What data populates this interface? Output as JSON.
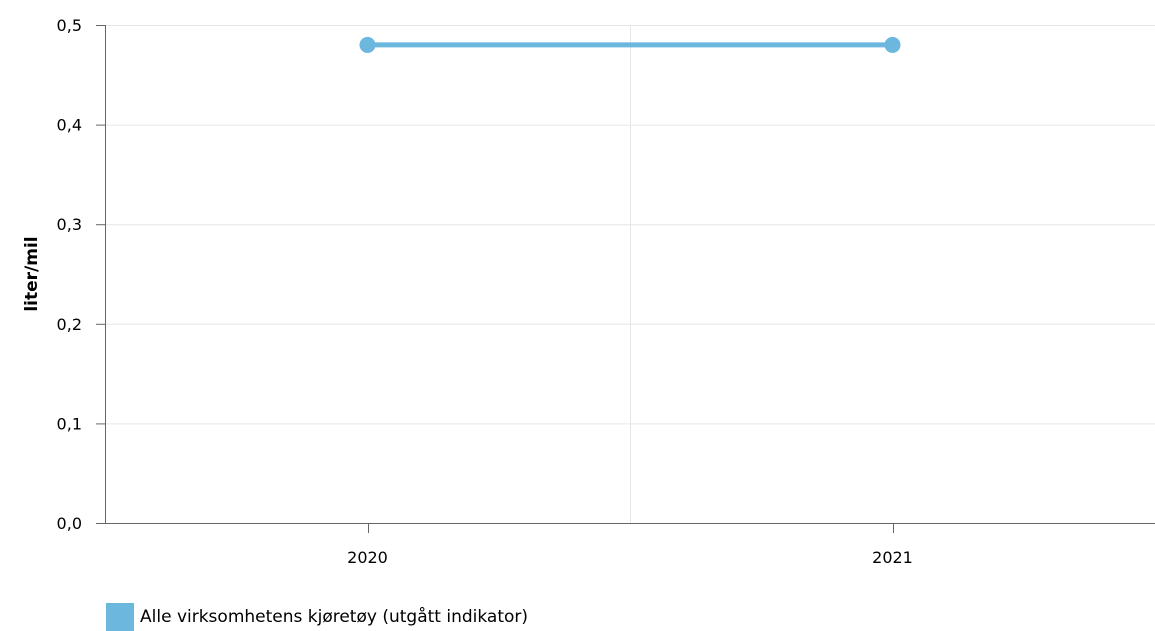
{
  "chart_data": {
    "type": "line",
    "categories": [
      "2020",
      "2021"
    ],
    "series": [
      {
        "name": "Alle virksomhetens kjøretøy (utgått indikator)",
        "values": [
          0.48,
          0.48
        ],
        "color": "#6bb7dd"
      }
    ],
    "title": "",
    "xlabel": "",
    "ylabel": "liter/mil",
    "ylim": [
      0,
      0.5
    ],
    "yticks": [
      {
        "value": 0.0,
        "label": "0,0"
      },
      {
        "value": 0.1,
        "label": "0,1"
      },
      {
        "value": 0.2,
        "label": "0,2"
      },
      {
        "value": 0.3,
        "label": "0,3"
      },
      {
        "value": 0.4,
        "label": "0,4"
      },
      {
        "value": 0.5,
        "label": "0,5"
      }
    ],
    "grid": true,
    "legend_position": "bottom-left"
  }
}
